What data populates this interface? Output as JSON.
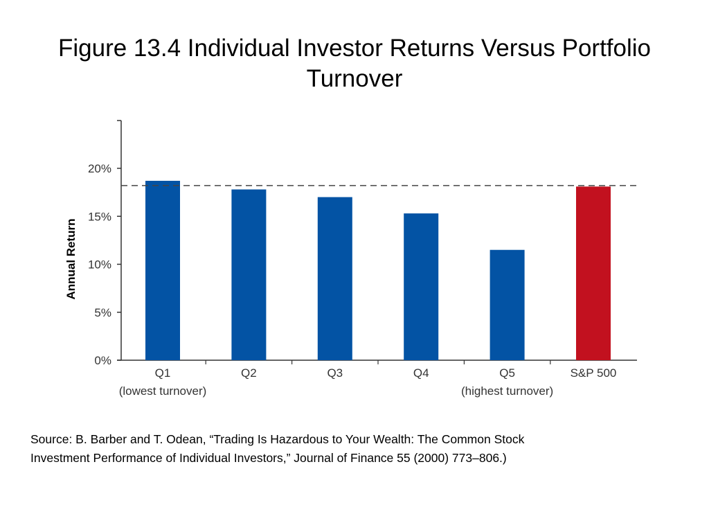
{
  "slide": {
    "title_line1": "Figure 13.4  Individual Investor Returns Versus Portfolio",
    "title_line2": "Turnover",
    "source_line1": "Source: B. Barber and T. Odean, “Trading Is Hazardous to Your Wealth: The Common Stock",
    "source_line2": "Investment Performance of Individual Investors,” Journal of Finance 55 (2000) 773–806.)"
  },
  "chart_data": {
    "type": "bar",
    "title": "",
    "xlabel": "",
    "ylabel": "Annual Return",
    "ylim": [
      0,
      25
    ],
    "yticks": [
      0,
      5,
      10,
      15,
      20
    ],
    "ytick_labels": [
      "0%",
      "5%",
      "10%",
      "15%",
      "20%"
    ],
    "categories": [
      "Q1",
      "Q2",
      "Q3",
      "Q4",
      "Q5",
      "S&P 500"
    ],
    "sublabels": [
      "(lowest turnover)",
      "",
      "",
      "",
      "(highest turnover)",
      ""
    ],
    "values": [
      18.7,
      17.8,
      17.0,
      15.3,
      11.5,
      18.1
    ],
    "bar_colors": [
      "#0353a4",
      "#0353a4",
      "#0353a4",
      "#0353a4",
      "#0353a4",
      "#c2111f"
    ],
    "reference_line": {
      "value": 18.2,
      "style": "dashed",
      "color": "#444444"
    },
    "grid": false,
    "legend": "none"
  }
}
